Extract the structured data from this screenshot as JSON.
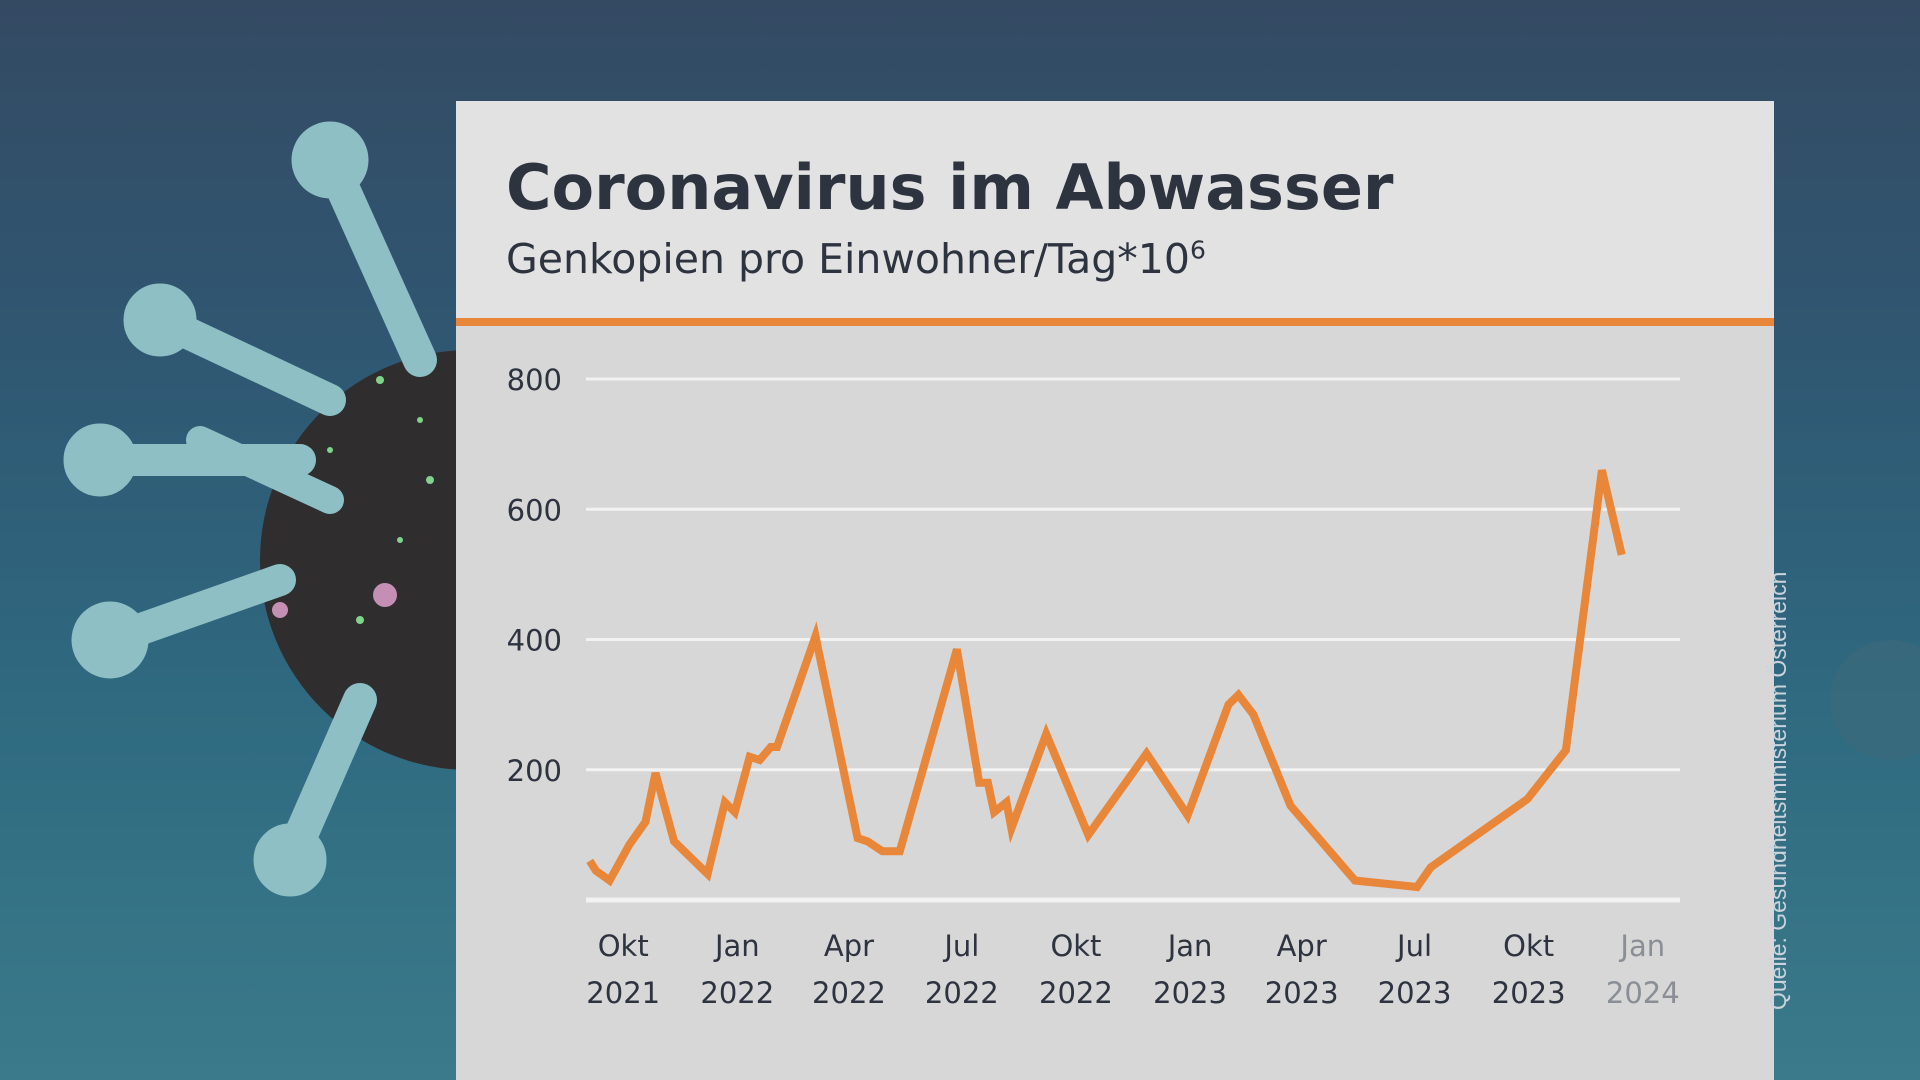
{
  "header": {
    "title": "Coronavirus im Abwasser",
    "subtitle_main": "Genkopien pro Einwohner/Tag*10",
    "subtitle_sup": "6"
  },
  "source": "Quelle: Gesundheitsministerium Österreich",
  "colors": {
    "line": "#e8873a",
    "accent": "#e8873a",
    "text": "#2e3340",
    "grid": "#f2f2f2",
    "muted_tick": "#8a8e96"
  },
  "decor": {
    "background_icon": "coronavirus-icon"
  },
  "chart_data": {
    "type": "line",
    "title": "Coronavirus im Abwasser",
    "subtitle": "Genkopien pro Einwohner/Tag*10^6",
    "xlabel": "",
    "ylabel": "",
    "ylim": [
      0,
      800
    ],
    "yticks": [
      200,
      400,
      600,
      800
    ],
    "grid": true,
    "xlim": [
      "2021-09-01",
      "2024-01-31"
    ],
    "xticks": [
      {
        "date": "2021-10-01",
        "line1": "Okt",
        "line2": "2021"
      },
      {
        "date": "2022-01-01",
        "line1": "Jan",
        "line2": "2022"
      },
      {
        "date": "2022-04-01",
        "line1": "Apr",
        "line2": "2022"
      },
      {
        "date": "2022-07-01",
        "line1": "Jul",
        "line2": "2022"
      },
      {
        "date": "2022-10-01",
        "line1": "Okt",
        "line2": "2022"
      },
      {
        "date": "2023-01-01",
        "line1": "Jan",
        "line2": "2023"
      },
      {
        "date": "2023-04-01",
        "line1": "Apr",
        "line2": "2023"
      },
      {
        "date": "2023-07-01",
        "line1": "Jul",
        "line2": "2023"
      },
      {
        "date": "2023-10-01",
        "line1": "Okt",
        "line2": "2023"
      },
      {
        "date": "2024-01-01",
        "line1": "Jan",
        "line2": "2024",
        "muted": true
      }
    ],
    "series": [
      {
        "points": [
          [
            "2021-09-04",
            60
          ],
          [
            "2021-09-09",
            45
          ],
          [
            "2021-09-20",
            30
          ],
          [
            "2021-10-06",
            85
          ],
          [
            "2021-10-19",
            120
          ],
          [
            "2021-10-27",
            195
          ],
          [
            "2021-11-11",
            90
          ],
          [
            "2021-12-08",
            40
          ],
          [
            "2021-12-22",
            150
          ],
          [
            "2021-12-30",
            135
          ],
          [
            "2022-01-11",
            220
          ],
          [
            "2022-01-19",
            215
          ],
          [
            "2022-01-28",
            235
          ],
          [
            "2022-02-02",
            235
          ],
          [
            "2022-03-05",
            405
          ],
          [
            "2022-04-08",
            95
          ],
          [
            "2022-04-16",
            90
          ],
          [
            "2022-04-28",
            75
          ],
          [
            "2022-05-12",
            75
          ],
          [
            "2022-06-27",
            385
          ],
          [
            "2022-07-15",
            180
          ],
          [
            "2022-07-22",
            180
          ],
          [
            "2022-07-27",
            135
          ],
          [
            "2022-08-06",
            150
          ],
          [
            "2022-08-10",
            110
          ],
          [
            "2022-09-07",
            255
          ],
          [
            "2022-10-11",
            100
          ],
          [
            "2022-11-27",
            225
          ],
          [
            "2022-12-30",
            130
          ],
          [
            "2023-02-01",
            300
          ],
          [
            "2023-02-09",
            315
          ],
          [
            "2023-02-21",
            285
          ],
          [
            "2023-03-23",
            145
          ],
          [
            "2023-05-14",
            30
          ],
          [
            "2023-07-03",
            20
          ],
          [
            "2023-07-14",
            50
          ],
          [
            "2023-09-30",
            155
          ],
          [
            "2023-10-31",
            230
          ],
          [
            "2023-11-29",
            660
          ],
          [
            "2023-12-15",
            530
          ]
        ]
      }
    ]
  }
}
